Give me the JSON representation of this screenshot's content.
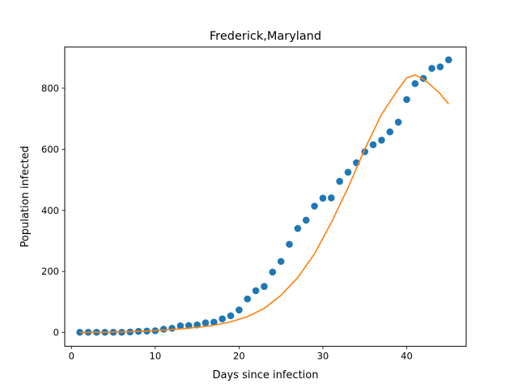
{
  "chart_data": {
    "type": "scatter",
    "title": "Frederick,Maryland",
    "xlabel": "Days since infection",
    "ylabel": "Population infected",
    "xlim": [
      -0.8,
      47.1
    ],
    "ylim": [
      -45,
      935
    ],
    "xticks": [
      0,
      10,
      20,
      30,
      40
    ],
    "yticks": [
      0,
      200,
      400,
      600,
      800
    ],
    "grid": false,
    "colors": {
      "points": "#1f77b4",
      "fit": "#ff7f0e"
    },
    "series": [
      {
        "kind": "scatter",
        "x": [
          1,
          2,
          3,
          4,
          5,
          6,
          7,
          8,
          9,
          10,
          11,
          12,
          13,
          14,
          15,
          16,
          17,
          18,
          19,
          20,
          21,
          22,
          23,
          24,
          25,
          26,
          27,
          28,
          29,
          30,
          31,
          32,
          33,
          34,
          35,
          36,
          37,
          38,
          39,
          40,
          41,
          42,
          43,
          44,
          45
        ],
        "y": [
          1,
          1,
          1,
          1,
          1,
          1,
          2,
          4,
          5,
          6,
          11,
          14,
          22,
          23,
          25,
          32,
          34,
          45,
          55,
          74,
          110,
          137,
          151,
          198,
          233,
          289,
          341,
          368,
          414,
          440,
          441,
          495,
          525,
          556,
          592,
          615,
          630,
          657,
          689,
          763,
          815,
          832,
          865,
          870,
          893
        ]
      },
      {
        "kind": "line",
        "x": [
          1,
          3,
          5,
          7,
          9,
          11,
          13,
          15,
          17,
          19,
          21,
          23,
          25,
          27,
          29,
          31,
          33,
          35,
          37,
          39,
          40,
          41,
          42,
          43,
          44,
          45
        ],
        "y": [
          0.5,
          1,
          2,
          3,
          5,
          8,
          12,
          17,
          24,
          35,
          52,
          79,
          122,
          180,
          258,
          360,
          474,
          601,
          714,
          797,
          834,
          843,
          830,
          807,
          782,
          748
        ]
      }
    ]
  }
}
